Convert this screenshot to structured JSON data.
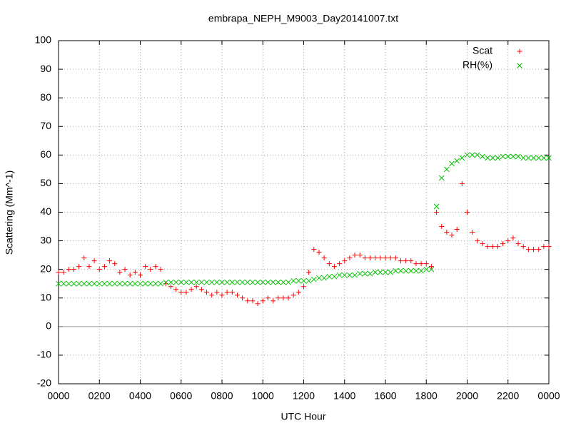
{
  "chart_data": {
    "type": "scatter",
    "title": "embrapa_NEPH_M9003_Day20141007.txt",
    "xlabel": "UTC Hour",
    "ylabel": "Scattering (Mm^-1)",
    "xlim": [
      0,
      24
    ],
    "ylim": [
      -20,
      100
    ],
    "xticks": [
      {
        "value": 0,
        "label": "0000"
      },
      {
        "value": 2,
        "label": "0200"
      },
      {
        "value": 4,
        "label": "0400"
      },
      {
        "value": 6,
        "label": "0600"
      },
      {
        "value": 8,
        "label": "0800"
      },
      {
        "value": 10,
        "label": "1000"
      },
      {
        "value": 12,
        "label": "1200"
      },
      {
        "value": 14,
        "label": "1400"
      },
      {
        "value": 16,
        "label": "1600"
      },
      {
        "value": 18,
        "label": "1800"
      },
      {
        "value": 20,
        "label": "2000"
      },
      {
        "value": 22,
        "label": "2200"
      },
      {
        "value": 24,
        "label": "0000"
      }
    ],
    "yticks": [
      -20,
      -10,
      0,
      10,
      20,
      30,
      40,
      50,
      60,
      70,
      80,
      90,
      100
    ],
    "grid": true,
    "zeroaxis": true,
    "legend": "top-right",
    "x": [
      0,
      0.25,
      0.5,
      0.75,
      1,
      1.25,
      1.5,
      1.75,
      2,
      2.25,
      2.5,
      2.75,
      3,
      3.25,
      3.5,
      3.75,
      4,
      4.25,
      4.5,
      4.75,
      5,
      5.25,
      5.5,
      5.75,
      6,
      6.25,
      6.5,
      6.75,
      7,
      7.25,
      7.5,
      7.75,
      8,
      8.25,
      8.5,
      8.75,
      9,
      9.25,
      9.5,
      9.75,
      10,
      10.25,
      10.5,
      10.75,
      11,
      11.25,
      11.5,
      11.75,
      12,
      12.25,
      12.5,
      12.75,
      13,
      13.25,
      13.5,
      13.75,
      14,
      14.25,
      14.5,
      14.75,
      15,
      15.25,
      15.5,
      15.75,
      16,
      16.25,
      16.5,
      16.75,
      17,
      17.25,
      17.5,
      17.75,
      18,
      18.25,
      18.5,
      18.75,
      19,
      19.25,
      19.5,
      19.75,
      20,
      20.25,
      20.5,
      20.75,
      21,
      21.25,
      21.5,
      21.75,
      22,
      22.25,
      22.5,
      22.75,
      23,
      23.25,
      23.5,
      23.75,
      24
    ],
    "series": [
      {
        "name": "Scat",
        "color": "#ff0000",
        "marker": "plus",
        "values": [
          19,
          19,
          20,
          20,
          21,
          24,
          21,
          23,
          20,
          21,
          23,
          22,
          19,
          20,
          18,
          19,
          18,
          21,
          20,
          21,
          20,
          15,
          14,
          13,
          12,
          12,
          13,
          14,
          13,
          12,
          11,
          12,
          11,
          12,
          12,
          11,
          10,
          9,
          9,
          8,
          9,
          10,
          9,
          10,
          10,
          10,
          11,
          12,
          14,
          19,
          27,
          26,
          24,
          22,
          21,
          22,
          23,
          24,
          25,
          25,
          24,
          24,
          24,
          24,
          24,
          24,
          24,
          23,
          23,
          23,
          22,
          22,
          22,
          21,
          40,
          35,
          33,
          32,
          34,
          50,
          40,
          33,
          30,
          29,
          28,
          28,
          28,
          29,
          30,
          31,
          29,
          28,
          27,
          27,
          27,
          28,
          28
        ]
      },
      {
        "name": "RH(%)",
        "color": "#00c000",
        "marker": "cross",
        "values": [
          15,
          15,
          15,
          15,
          15,
          15,
          15,
          15,
          15,
          15,
          15,
          15,
          15,
          15,
          15,
          15,
          15,
          15,
          15,
          15,
          15,
          15.5,
          15.5,
          15.5,
          15.5,
          15.5,
          15.5,
          15.5,
          15.5,
          15.5,
          15.5,
          15.5,
          15.5,
          15.5,
          15.5,
          15.5,
          15.5,
          15.5,
          15.5,
          15.5,
          15.5,
          15.5,
          15.5,
          15.5,
          15.5,
          15.5,
          16,
          16,
          16,
          16,
          16.5,
          17,
          17,
          17.5,
          17.5,
          18,
          18,
          18,
          18,
          18.5,
          18.5,
          18.5,
          19,
          19,
          19,
          19,
          19.5,
          19.5,
          19.5,
          19.5,
          19.5,
          19.5,
          20,
          20,
          42,
          52,
          55,
          57,
          58,
          59,
          60,
          60,
          60,
          59.5,
          59,
          59,
          59,
          59.5,
          59.5,
          59.5,
          59.5,
          59,
          59,
          59,
          59,
          59,
          59
        ]
      }
    ]
  }
}
